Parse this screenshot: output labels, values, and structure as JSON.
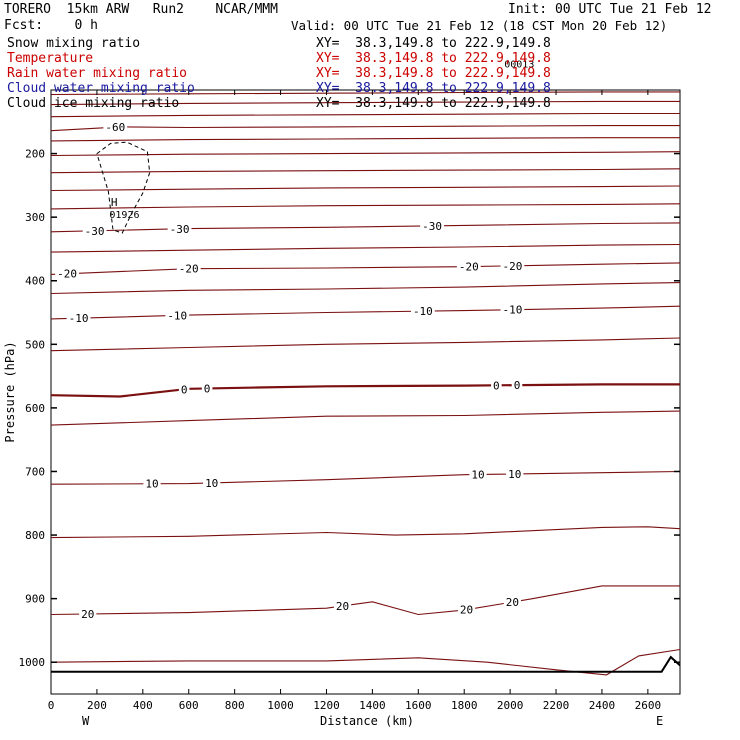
{
  "header": {
    "model": "TORERO  15km ARW   Run2    NCAR/MMM",
    "init": "Init: 00 UTC Tue 21 Feb 12",
    "fcst": "Fcst:    0 h",
    "valid": "Valid: 00 UTC Tue 21 Feb 12 (18 CST Mon 20 Feb 12)"
  },
  "legend": [
    {
      "label": "Snow mixing ratio",
      "xy": "XY=  38.3,149.8 to 222.9,149.8",
      "color": "#000000"
    },
    {
      "label": "Temperature",
      "xy": "XY=  38.3,149.8 to 222.9,149.8",
      "color": "#cc0000"
    },
    {
      "label": "Rain water mixing ratio",
      "xy": "XY=  38.3,149.8 to 222.9,149.8",
      "color": "#cc0000"
    },
    {
      "label": "Cloud water mixing ratio",
      "xy": "XY=  38.3,149.8 to 222.9,149.8",
      "color": "#1a1aa0"
    },
    {
      "label": "Cloud ice mixing ratio",
      "xy": "XY=  38.3,149.8 to 222.9,149.8",
      "color": "#000000"
    }
  ],
  "chart_data": {
    "type": "contour cross-section",
    "xlabel": "Distance (km)",
    "ylabel": "Pressure (hPa)",
    "xlim": [
      0,
      2740
    ],
    "ylim": [
      1050,
      100
    ],
    "x_ticks": [
      0,
      200,
      400,
      600,
      800,
      1000,
      1200,
      1400,
      1600,
      1800,
      2000,
      2200,
      2400,
      2600
    ],
    "y_ticks": [
      200,
      300,
      400,
      500,
      600,
      700,
      800,
      900,
      1000
    ],
    "endpoints": {
      "left": "W",
      "right": "E"
    },
    "contour_color": "#7a1010",
    "isotherms": [
      {
        "level": -50,
        "labels": [],
        "points": [
          [
            0,
            107
          ],
          [
            600,
            106
          ],
          [
            1200,
            105
          ],
          [
            1800,
            104
          ],
          [
            2400,
            103
          ],
          [
            2740,
            103
          ]
        ]
      },
      {
        "level": -55,
        "labels": [],
        "points": [
          [
            0,
            123
          ],
          [
            600,
            121
          ],
          [
            1200,
            120
          ],
          [
            1800,
            119
          ],
          [
            2400,
            118
          ],
          [
            2740,
            118
          ]
        ]
      },
      {
        "level": -55,
        "labels": [],
        "points": [
          [
            0,
            142
          ],
          [
            600,
            140
          ],
          [
            1200,
            139
          ],
          [
            1800,
            138
          ],
          [
            2400,
            137
          ],
          [
            2740,
            137
          ]
        ]
      },
      {
        "level": -60,
        "labels": [
          {
            "x": 280,
            "text": "-60"
          }
        ],
        "points": [
          [
            0,
            164
          ],
          [
            300,
            158
          ],
          [
            600,
            159
          ],
          [
            1200,
            158
          ],
          [
            1800,
            157
          ],
          [
            2400,
            156
          ],
          [
            2740,
            156
          ]
        ]
      },
      {
        "level": -55,
        "labels": [],
        "points": [
          [
            0,
            180
          ],
          [
            600,
            178
          ],
          [
            1200,
            177
          ],
          [
            1800,
            176
          ],
          [
            2400,
            175
          ],
          [
            2740,
            175
          ]
        ]
      },
      {
        "level": -50,
        "labels": [],
        "points": [
          [
            0,
            203
          ],
          [
            600,
            201
          ],
          [
            1200,
            200
          ],
          [
            1800,
            199
          ],
          [
            2400,
            198
          ],
          [
            2740,
            197
          ]
        ]
      },
      {
        "level": -45,
        "labels": [],
        "points": [
          [
            0,
            230
          ],
          [
            600,
            228
          ],
          [
            1200,
            227
          ],
          [
            1800,
            226
          ],
          [
            2400,
            225
          ],
          [
            2740,
            224
          ]
        ]
      },
      {
        "level": -40,
        "labels": [],
        "points": [
          [
            0,
            258
          ],
          [
            600,
            256
          ],
          [
            1200,
            254
          ],
          [
            1800,
            253
          ],
          [
            2400,
            252
          ],
          [
            2740,
            251
          ]
        ]
      },
      {
        "level": -35,
        "labels": [],
        "points": [
          [
            0,
            287
          ],
          [
            600,
            284
          ],
          [
            1200,
            282
          ],
          [
            1800,
            281
          ],
          [
            2400,
            280
          ],
          [
            2740,
            279
          ]
        ]
      },
      {
        "level": -30,
        "labels": [
          {
            "x": 190,
            "text": "-30"
          },
          {
            "x": 560,
            "text": "-30"
          },
          {
            "x": 1660,
            "text": "-30"
          }
        ],
        "points": [
          [
            0,
            323
          ],
          [
            600,
            318
          ],
          [
            1200,
            316
          ],
          [
            1800,
            313
          ],
          [
            2400,
            310
          ],
          [
            2740,
            309
          ]
        ]
      },
      {
        "level": -25,
        "labels": [],
        "points": [
          [
            0,
            355
          ],
          [
            600,
            352
          ],
          [
            1200,
            349
          ],
          [
            1800,
            347
          ],
          [
            2400,
            344
          ],
          [
            2740,
            343
          ]
        ]
      },
      {
        "level": -20,
        "labels": [
          {
            "x": 70,
            "text": "-20"
          },
          {
            "x": 600,
            "text": "-20"
          },
          {
            "x": 1820,
            "text": "-20"
          },
          {
            "x": 2010,
            "text": "-20"
          }
        ],
        "points": [
          [
            0,
            390
          ],
          [
            600,
            381
          ],
          [
            1200,
            380
          ],
          [
            1800,
            378
          ],
          [
            2400,
            374
          ],
          [
            2740,
            372
          ]
        ]
      },
      {
        "level": -15,
        "labels": [],
        "points": [
          [
            0,
            420
          ],
          [
            600,
            415
          ],
          [
            1200,
            413
          ],
          [
            1800,
            410
          ],
          [
            2400,
            405
          ],
          [
            2740,
            403
          ]
        ]
      },
      {
        "level": -10,
        "labels": [
          {
            "x": 120,
            "text": "-10"
          },
          {
            "x": 550,
            "text": "-10"
          },
          {
            "x": 1620,
            "text": "-10"
          },
          {
            "x": 2010,
            "text": "-10"
          }
        ],
        "points": [
          [
            0,
            460
          ],
          [
            600,
            454
          ],
          [
            1200,
            450
          ],
          [
            1800,
            447
          ],
          [
            2400,
            443
          ],
          [
            2740,
            440
          ]
        ]
      },
      {
        "level": -5,
        "labels": [],
        "points": [
          [
            0,
            510
          ],
          [
            600,
            505
          ],
          [
            1200,
            500
          ],
          [
            1800,
            497
          ],
          [
            2400,
            493
          ],
          [
            2740,
            490
          ]
        ]
      },
      {
        "level": 0,
        "labels": [
          {
            "x": 580,
            "text": "0"
          },
          {
            "x": 680,
            "text": "0"
          },
          {
            "x": 1940,
            "text": "0"
          },
          {
            "x": 2030,
            "text": "0"
          }
        ],
        "points": [
          [
            0,
            580
          ],
          [
            300,
            582
          ],
          [
            600,
            570
          ],
          [
            900,
            568
          ],
          [
            1200,
            566
          ],
          [
            1800,
            565
          ],
          [
            2400,
            563
          ],
          [
            2740,
            563
          ]
        ]
      },
      {
        "level": 5,
        "labels": [],
        "points": [
          [
            0,
            627
          ],
          [
            600,
            620
          ],
          [
            1200,
            613
          ],
          [
            1800,
            612
          ],
          [
            2400,
            607
          ],
          [
            2740,
            605
          ]
        ]
      },
      {
        "level": 10,
        "labels": [
          {
            "x": 440,
            "text": "10"
          },
          {
            "x": 700,
            "text": "10"
          },
          {
            "x": 1860,
            "text": "10"
          },
          {
            "x": 2020,
            "text": "10"
          }
        ],
        "points": [
          [
            0,
            720
          ],
          [
            600,
            719
          ],
          [
            1200,
            713
          ],
          [
            1800,
            705
          ],
          [
            2400,
            702
          ],
          [
            2740,
            700
          ]
        ]
      },
      {
        "level": 15,
        "labels": [],
        "points": [
          [
            0,
            804
          ],
          [
            600,
            802
          ],
          [
            1200,
            796
          ],
          [
            1500,
            800
          ],
          [
            1800,
            798
          ],
          [
            2400,
            788
          ],
          [
            2600,
            787
          ],
          [
            2740,
            790
          ]
        ]
      },
      {
        "level": 20,
        "labels": [
          {
            "x": 160,
            "text": "20"
          },
          {
            "x": 1270,
            "text": "20"
          },
          {
            "x": 1810,
            "text": "20"
          },
          {
            "x": 2010,
            "text": "20"
          }
        ],
        "points": [
          [
            0,
            925
          ],
          [
            600,
            922
          ],
          [
            1200,
            915
          ],
          [
            1400,
            905
          ],
          [
            1600,
            925
          ],
          [
            1800,
            918
          ],
          [
            2100,
            900
          ],
          [
            2400,
            880
          ],
          [
            2740,
            880
          ]
        ]
      },
      {
        "level": 25,
        "labels": [],
        "points": [
          [
            0,
            1000
          ],
          [
            600,
            998
          ],
          [
            1200,
            998
          ],
          [
            1600,
            993
          ],
          [
            1900,
            1000
          ],
          [
            2200,
            1012
          ],
          [
            2420,
            1020
          ],
          [
            2560,
            990
          ],
          [
            2740,
            980
          ]
        ]
      }
    ],
    "snow_contour": {
      "level": "0.1",
      "points": [
        [
          200,
          200
        ],
        [
          260,
          184
        ],
        [
          330,
          182
        ],
        [
          420,
          197
        ],
        [
          430,
          230
        ],
        [
          400,
          262
        ],
        [
          350,
          295
        ],
        [
          310,
          325
        ],
        [
          270,
          320
        ],
        [
          250,
          260
        ],
        [
          200,
          200
        ]
      ]
    },
    "markers": [
      {
        "type": "H",
        "x": 275,
        "y": 276
      }
    ],
    "annotations": [
      {
        "x": 320,
        "y": 295,
        "text": "01926"
      },
      {
        "x": 2040,
        "y": 58,
        "text": "00013"
      }
    ],
    "terrain": [
      [
        0,
        1015
      ],
      [
        2560,
        1015
      ],
      [
        2660,
        1015
      ],
      [
        2700,
        992
      ],
      [
        2740,
        1005
      ]
    ]
  }
}
